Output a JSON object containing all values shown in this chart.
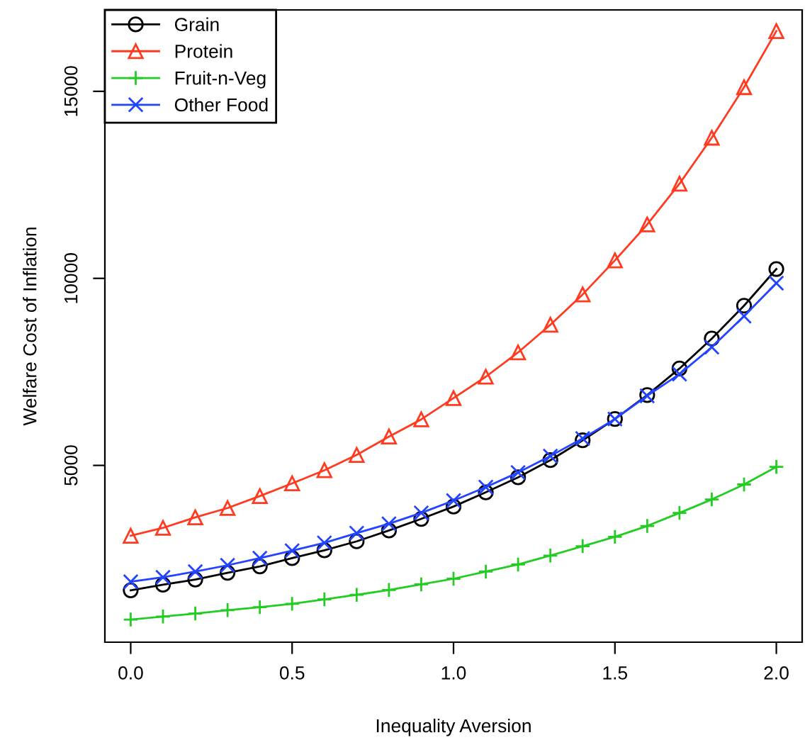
{
  "chart_data": {
    "type": "line",
    "xlabel": "Inequality Aversion",
    "ylabel": "Welfare Cost of Inflation",
    "x": [
      0.0,
      0.1,
      0.2,
      0.3,
      0.4,
      0.5,
      0.6,
      0.7,
      0.8,
      0.9,
      1.0,
      1.1,
      1.2,
      1.3,
      1.4,
      1.5,
      1.6,
      1.7,
      1.8,
      1.9,
      2.0
    ],
    "series": [
      {
        "name": "Grain",
        "color": "#000000",
        "marker": "circle",
        "values": [
          1660,
          1810,
          1950,
          2130,
          2300,
          2520,
          2730,
          2970,
          3260,
          3570,
          3900,
          4280,
          4680,
          5140,
          5670,
          6240,
          6880,
          7590,
          8390,
          9270,
          10250
        ]
      },
      {
        "name": "Protein",
        "color": "#ff3a1f",
        "marker": "triangle",
        "values": [
          3120,
          3330,
          3610,
          3860,
          4180,
          4520,
          4870,
          5280,
          5770,
          6230,
          6800,
          7370,
          8020,
          8760,
          9570,
          10480,
          11440,
          12530,
          13760,
          15110,
          16610
        ]
      },
      {
        "name": "Fruit-n-Veg",
        "color": "#22cc22",
        "marker": "plus",
        "values": [
          880,
          960,
          1040,
          1130,
          1210,
          1300,
          1420,
          1540,
          1670,
          1820,
          1970,
          2160,
          2350,
          2590,
          2840,
          3090,
          3380,
          3730,
          4090,
          4490,
          4960
        ]
      },
      {
        "name": "Other Food",
        "color": "#2244ff",
        "marker": "cross",
        "values": [
          1890,
          2010,
          2160,
          2330,
          2520,
          2720,
          2930,
          3190,
          3440,
          3730,
          4060,
          4420,
          4810,
          5250,
          5720,
          6240,
          6860,
          7440,
          8160,
          8990,
          9870
        ]
      }
    ],
    "xlim": [
      -0.08,
      2.08
    ],
    "ylim": [
      274,
      17176
    ],
    "xticks": [
      {
        "value": 0,
        "label": "0.0"
      },
      {
        "value": 0.5,
        "label": "0.5"
      },
      {
        "value": 1,
        "label": "1.0"
      },
      {
        "value": 1.5,
        "label": "1.5"
      },
      {
        "value": 2,
        "label": "2.0"
      }
    ],
    "yticks": [
      5000,
      10000,
      15000
    ],
    "grid": false,
    "legend": "top left",
    "line_style": "solid"
  }
}
